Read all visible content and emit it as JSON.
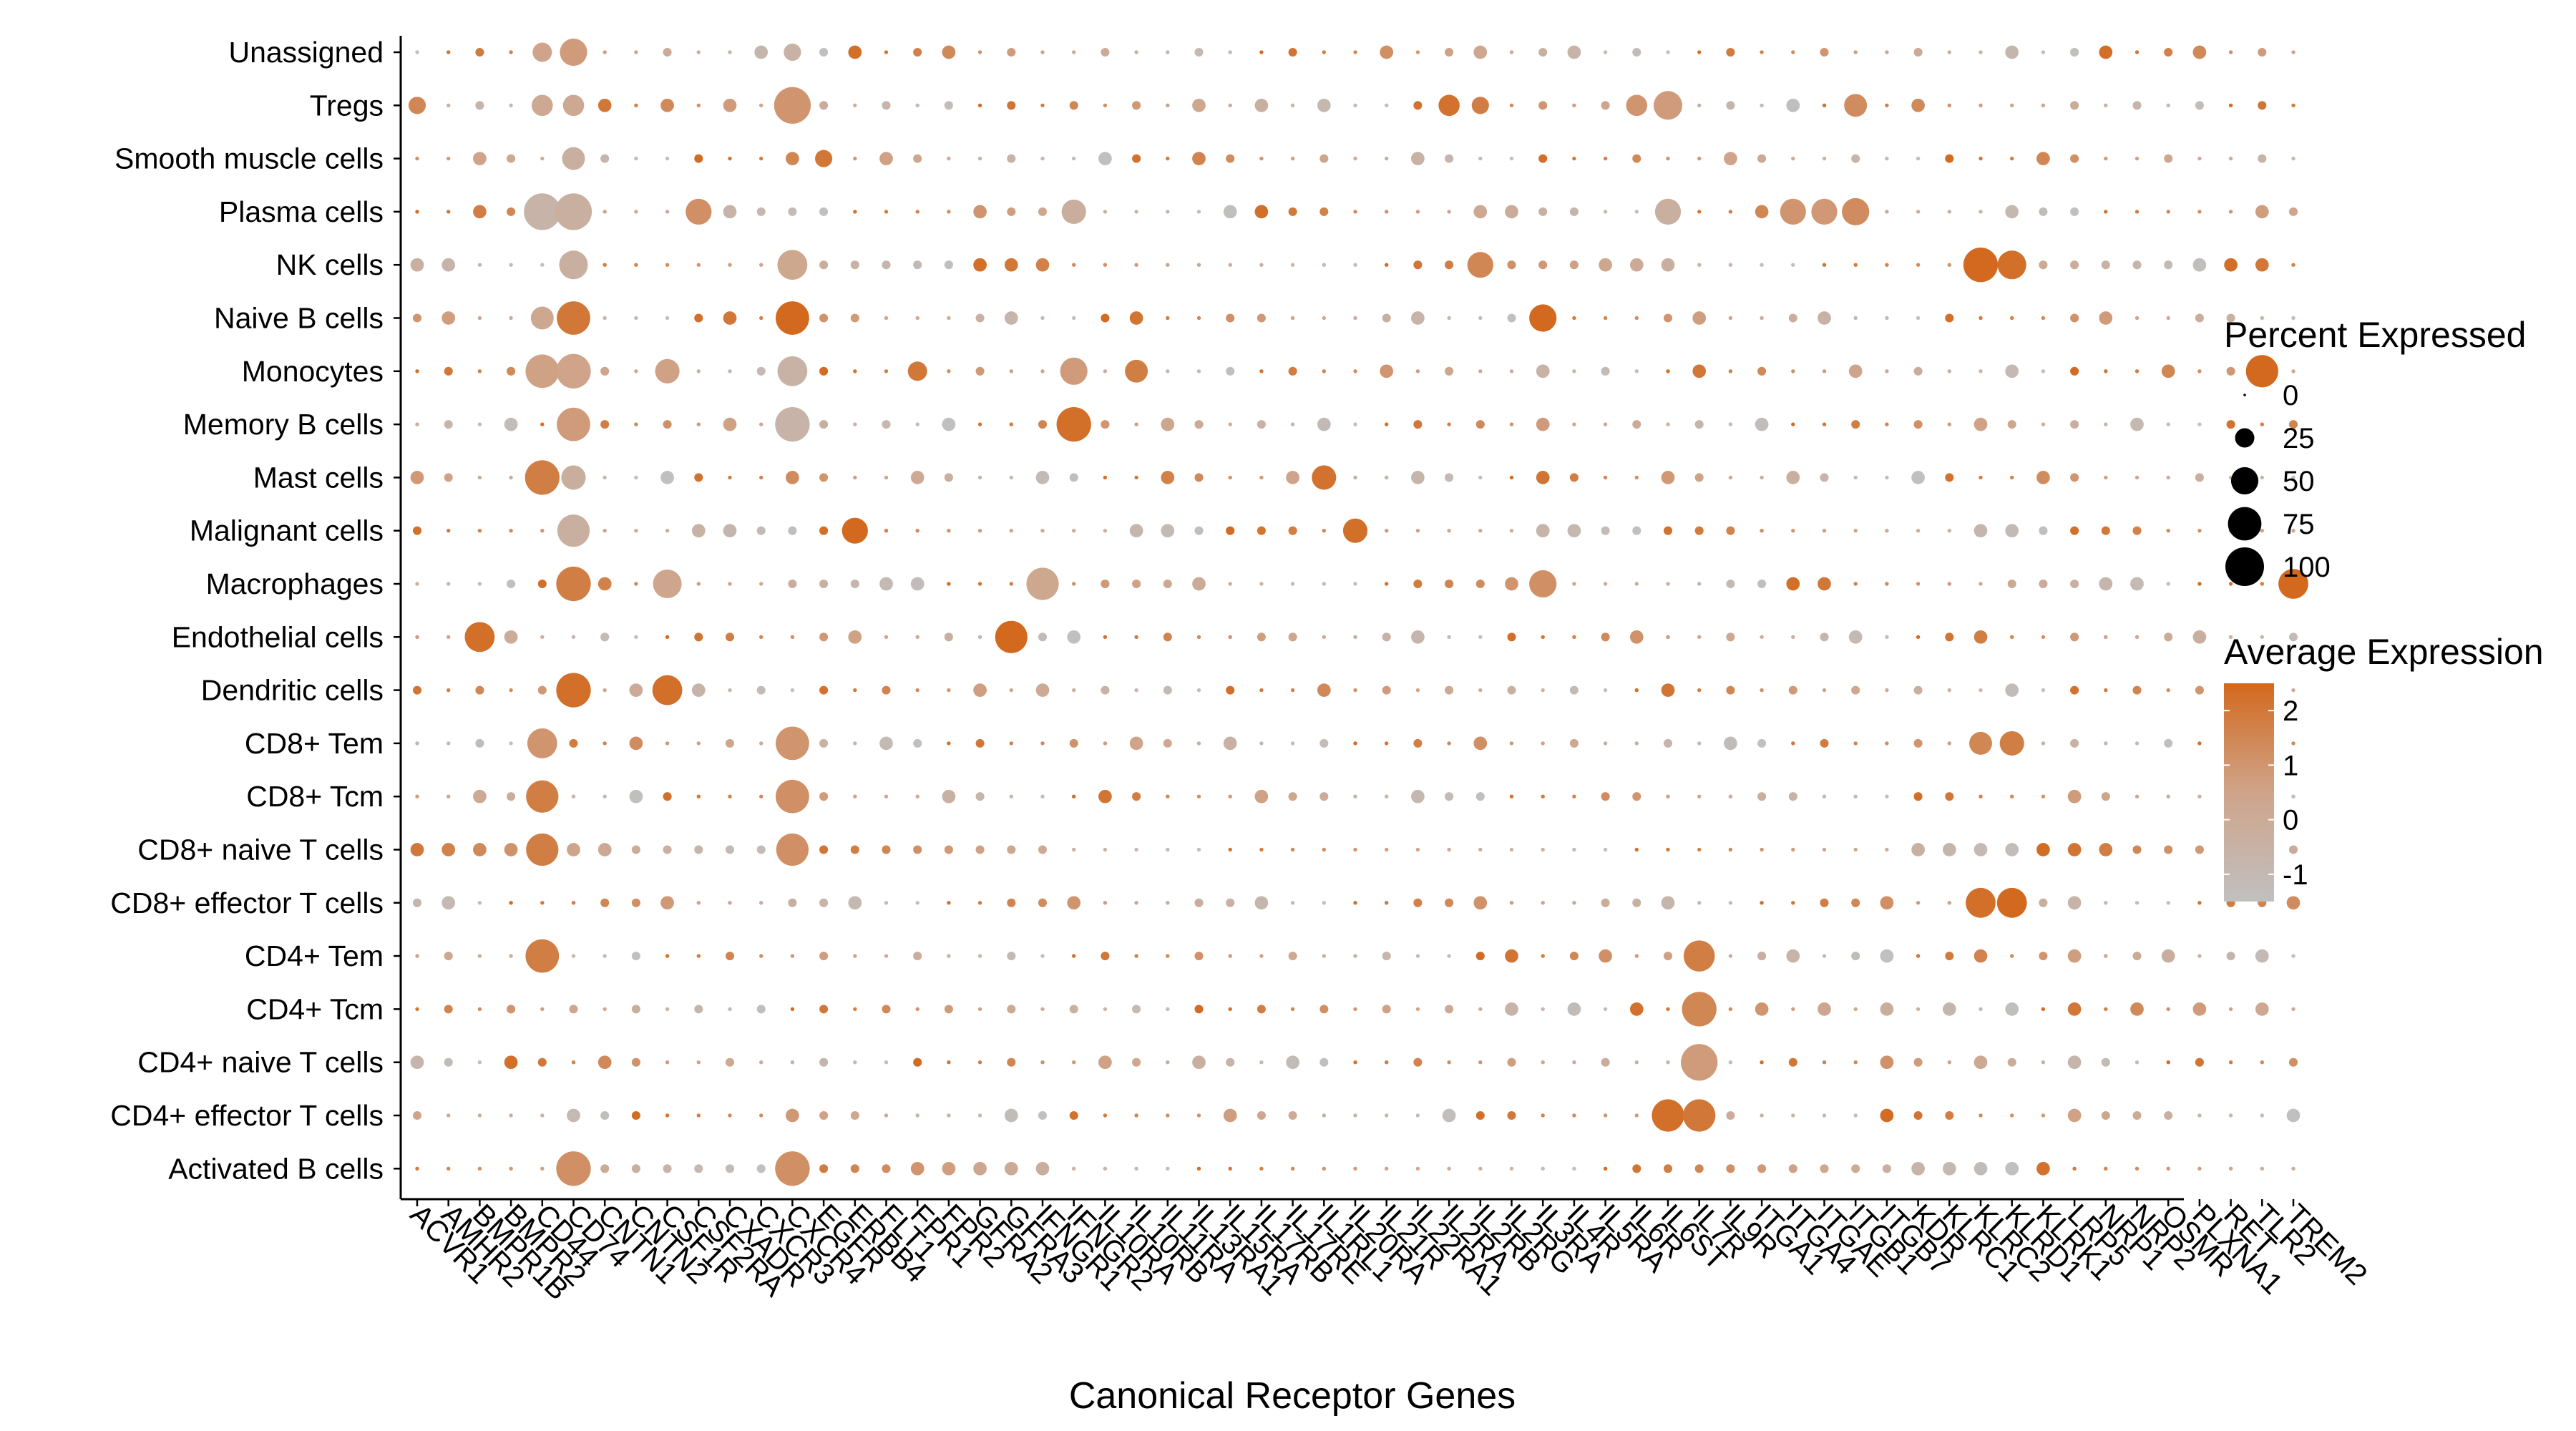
{
  "chart_data": {
    "type": "dot",
    "xlabel": "Canonical Receptor Genes",
    "ylabel": "",
    "title": "",
    "genes": [
      "ACVR1",
      "AMHR2",
      "BMPR1B",
      "BMPR2",
      "CD44",
      "CD74",
      "CNTN1",
      "CNTN2",
      "CSF1R",
      "CSF2RA",
      "CXADR",
      "CXCR3",
      "CXCR4",
      "EGFR",
      "ERBB4",
      "FLT1",
      "FPR1",
      "FPR2",
      "GFRA2",
      "GFRA3",
      "IFNGR1",
      "IFNGR2",
      "IL10RA",
      "IL10RB",
      "IL11RA",
      "IL13RA1",
      "IL15RA",
      "IL17RB",
      "IL17RE",
      "IL1RL1",
      "IL20RA",
      "IL21R",
      "IL22RA1",
      "IL2RA",
      "IL2RB",
      "IL2RG",
      "IL3RA",
      "IL4R",
      "IL5RA",
      "IL6R",
      "IL6ST",
      "IL7R",
      "IL9R",
      "ITGA1",
      "ITGA4",
      "ITGAE",
      "ITGB1",
      "ITGB7",
      "KDR",
      "KLRC1",
      "KLRC2",
      "KLRD1",
      "KLRK1",
      "LRP5",
      "NRP1",
      "NRP2",
      "OSMR",
      "PLXNA1",
      "RET",
      "TLR2",
      "TREM2"
    ],
    "cell_types": [
      "Unassigned",
      "Tregs",
      "Smooth muscle cells",
      "Plasma cells",
      "NK cells",
      "Naive B cells",
      "Monocytes",
      "Memory B cells",
      "Mast cells",
      "Malignant cells",
      "Macrophages",
      "Endothelial cells",
      "Dendritic cells",
      "CD8+ Tem",
      "CD8+ Tcm",
      "CD8+ naive T cells",
      "CD8+ effector T cells",
      "CD4+ Tem",
      "CD4+ Tcm",
      "CD4+ naive T cells",
      "CD4+ effector T cells",
      "Activated B cells"
    ],
    "points": [
      {
        "gene": "CD44",
        "cell": "Unassigned",
        "pct": 25,
        "exp": 0.5
      },
      {
        "gene": "CD74",
        "cell": "Unassigned",
        "pct": 50,
        "exp": 0.8
      },
      {
        "gene": "CXCR4",
        "cell": "Unassigned",
        "pct": 20,
        "exp": -0.5
      },
      {
        "gene": "ACVR1",
        "cell": "Tregs",
        "pct": 20,
        "exp": 1.5
      },
      {
        "gene": "CD44",
        "cell": "Tregs",
        "pct": 30,
        "exp": 0.2
      },
      {
        "gene": "CD74",
        "cell": "Tregs",
        "pct": 30,
        "exp": 0.2
      },
      {
        "gene": "CXCR4",
        "cell": "Tregs",
        "pct": 90,
        "exp": 1.0
      },
      {
        "gene": "IL2RA",
        "cell": "Tregs",
        "pct": 30,
        "exp": 2.2
      },
      {
        "gene": "IL2RB",
        "cell": "Tregs",
        "pct": 20,
        "exp": 1.8
      },
      {
        "gene": "IL6R",
        "cell": "Tregs",
        "pct": 30,
        "exp": 1.0
      },
      {
        "gene": "IL6ST",
        "cell": "Tregs",
        "pct": 55,
        "exp": 0.8
      },
      {
        "gene": "ITGB1",
        "cell": "Tregs",
        "pct": 35,
        "exp": 1.3
      },
      {
        "gene": "CD74",
        "cell": "Smooth muscle cells",
        "pct": 35,
        "exp": -0.3
      },
      {
        "gene": "EGFR",
        "cell": "Smooth muscle cells",
        "pct": 20,
        "exp": 2.0
      },
      {
        "gene": "CD44",
        "cell": "Plasma cells",
        "pct": 90,
        "exp": -0.6
      },
      {
        "gene": "CD74",
        "cell": "Plasma cells",
        "pct": 90,
        "exp": -0.3
      },
      {
        "gene": "CSF2RA",
        "cell": "Plasma cells",
        "pct": 45,
        "exp": 1.2
      },
      {
        "gene": "IFNGR2",
        "cell": "Plasma cells",
        "pct": 40,
        "exp": -0.2
      },
      {
        "gene": "IL6ST",
        "cell": "Plasma cells",
        "pct": 45,
        "exp": -0.3
      },
      {
        "gene": "ITGA4",
        "cell": "Plasma cells",
        "pct": 45,
        "exp": 1.0
      },
      {
        "gene": "ITGAE",
        "cell": "Plasma cells",
        "pct": 45,
        "exp": 0.9
      },
      {
        "gene": "ITGB1",
        "cell": "Plasma cells",
        "pct": 50,
        "exp": 1.3
      },
      {
        "gene": "CD74",
        "cell": "NK cells",
        "pct": 55,
        "exp": -0.3
      },
      {
        "gene": "CXCR4",
        "cell": "NK cells",
        "pct": 60,
        "exp": 0.3
      },
      {
        "gene": "IL2RB",
        "cell": "NK cells",
        "pct": 45,
        "exp": 1.5
      },
      {
        "gene": "KLRC2",
        "cell": "NK cells",
        "pct": 80,
        "exp": 2.5
      },
      {
        "gene": "KLRD1",
        "cell": "NK cells",
        "pct": 55,
        "exp": 2.3
      },
      {
        "gene": "CD44",
        "cell": "Naive B cells",
        "pct": 35,
        "exp": 0.3
      },
      {
        "gene": "CD74",
        "cell": "Naive B cells",
        "pct": 75,
        "exp": 2.0
      },
      {
        "gene": "CXCR4",
        "cell": "Naive B cells",
        "pct": 75,
        "exp": 2.5
      },
      {
        "gene": "IL3RA",
        "cell": "Naive B cells",
        "pct": 50,
        "exp": 2.5
      },
      {
        "gene": "CD44",
        "cell": "Monocytes",
        "pct": 75,
        "exp": 0.6
      },
      {
        "gene": "CD74",
        "cell": "Monocytes",
        "pct": 80,
        "exp": 0.5
      },
      {
        "gene": "CSF1R",
        "cell": "Monocytes",
        "pct": 40,
        "exp": 0.6
      },
      {
        "gene": "CXCR4",
        "cell": "Monocytes",
        "pct": 60,
        "exp": -0.5
      },
      {
        "gene": "FPR1",
        "cell": "Monocytes",
        "pct": 25,
        "exp": 2.0
      },
      {
        "gene": "IFNGR2",
        "cell": "Monocytes",
        "pct": 50,
        "exp": 0.8
      },
      {
        "gene": "IL10RB",
        "cell": "Monocytes",
        "pct": 35,
        "exp": 1.8
      },
      {
        "gene": "TLR2",
        "cell": "Monocytes",
        "pct": 70,
        "exp": 2.5
      },
      {
        "gene": "CD74",
        "cell": "Memory B cells",
        "pct": 75,
        "exp": 0.8
      },
      {
        "gene": "CXCR4",
        "cell": "Memory B cells",
        "pct": 80,
        "exp": -0.6
      },
      {
        "gene": "IFNGR2",
        "cell": "Memory B cells",
        "pct": 80,
        "exp": 2.3
      },
      {
        "gene": "CD44",
        "cell": "Mast cells",
        "pct": 80,
        "exp": 1.8
      },
      {
        "gene": "CD74",
        "cell": "Mast cells",
        "pct": 40,
        "exp": -0.2
      },
      {
        "gene": "IL1RL1",
        "cell": "Mast cells",
        "pct": 40,
        "exp": 2.2
      },
      {
        "gene": "CD74",
        "cell": "Malignant cells",
        "pct": 70,
        "exp": -0.3
      },
      {
        "gene": "ERBB4",
        "cell": "Malignant cells",
        "pct": 45,
        "exp": 2.5
      },
      {
        "gene": "IL20RA",
        "cell": "Malignant cells",
        "pct": 40,
        "exp": 2.3
      },
      {
        "gene": "CD74",
        "cell": "Macrophages",
        "pct": 80,
        "exp": 1.8
      },
      {
        "gene": "CSF1R",
        "cell": "Macrophages",
        "pct": 55,
        "exp": 0.4
      },
      {
        "gene": "IFNGR1",
        "cell": "Macrophages",
        "pct": 70,
        "exp": 0.3
      },
      {
        "gene": "IL3RA",
        "cell": "Macrophages",
        "pct": 50,
        "exp": 1.2
      },
      {
        "gene": "TREM2",
        "cell": "Macrophages",
        "pct": 60,
        "exp": 2.5
      },
      {
        "gene": "BMPR1B",
        "cell": "Endothelial cells",
        "pct": 60,
        "exp": 2.3
      },
      {
        "gene": "GFRA3",
        "cell": "Endothelial cells",
        "pct": 70,
        "exp": 2.5
      },
      {
        "gene": "CD74",
        "cell": "Dendritic cells",
        "pct": 80,
        "exp": 2.3
      },
      {
        "gene": "CSF1R",
        "cell": "Dendritic cells",
        "pct": 60,
        "exp": 2.3
      },
      {
        "gene": "CD44",
        "cell": "CD8+ Tem",
        "pct": 60,
        "exp": 1.0
      },
      {
        "gene": "CXCR4",
        "cell": "CD8+ Tem",
        "pct": 75,
        "exp": 1.0
      },
      {
        "gene": "KLRC2",
        "cell": "CD8+ Tem",
        "pct": 35,
        "exp": 1.5
      },
      {
        "gene": "KLRD1",
        "cell": "CD8+ Tem",
        "pct": 40,
        "exp": 1.8
      },
      {
        "gene": "CD44",
        "cell": "CD8+ Tcm",
        "pct": 70,
        "exp": 1.8
      },
      {
        "gene": "CXCR4",
        "cell": "CD8+ Tcm",
        "pct": 75,
        "exp": 1.2
      },
      {
        "gene": "CD44",
        "cell": "CD8+ naive T cells",
        "pct": 70,
        "exp": 1.8
      },
      {
        "gene": "CXCR4",
        "cell": "CD8+ naive T cells",
        "pct": 70,
        "exp": 1.2
      },
      {
        "gene": "KLRC2",
        "cell": "CD8+ effector T cells",
        "pct": 60,
        "exp": 2.3
      },
      {
        "gene": "KLRD1",
        "cell": "CD8+ effector T cells",
        "pct": 60,
        "exp": 2.5
      },
      {
        "gene": "CD44",
        "cell": "CD4+ Tem",
        "pct": 75,
        "exp": 1.8
      },
      {
        "gene": "IL7R",
        "cell": "CD4+ Tem",
        "pct": 65,
        "exp": 1.8
      },
      {
        "gene": "IL7R",
        "cell": "CD4+ Tcm",
        "pct": 80,
        "exp": 1.5
      },
      {
        "gene": "IL7R",
        "cell": "CD4+ naive T cells",
        "pct": 90,
        "exp": 0.8
      },
      {
        "gene": "IL6ST",
        "cell": "CD4+ effector T cells",
        "pct": 70,
        "exp": 2.3
      },
      {
        "gene": "IL7R",
        "cell": "CD4+ effector T cells",
        "pct": 70,
        "exp": 2.0
      },
      {
        "gene": "CD74",
        "cell": "Activated B cells",
        "pct": 80,
        "exp": 1.2
      },
      {
        "gene": "CXCR4",
        "cell": "Activated B cells",
        "pct": 80,
        "exp": 1.2
      }
    ],
    "legend_size": {
      "title": "Percent Expressed",
      "entries": [
        "0",
        "25",
        "50",
        "75",
        "100"
      ],
      "values": [
        0,
        25,
        50,
        75,
        100
      ]
    },
    "legend_color": {
      "title": "Average Expression",
      "ticks": [
        "2",
        "1",
        "0",
        "-1"
      ],
      "tick_values": [
        2,
        1,
        0,
        -1
      ],
      "range": [
        -1.5,
        2.5
      ],
      "low_color": "#c0c0c0",
      "high_color": "#d2691e"
    }
  }
}
